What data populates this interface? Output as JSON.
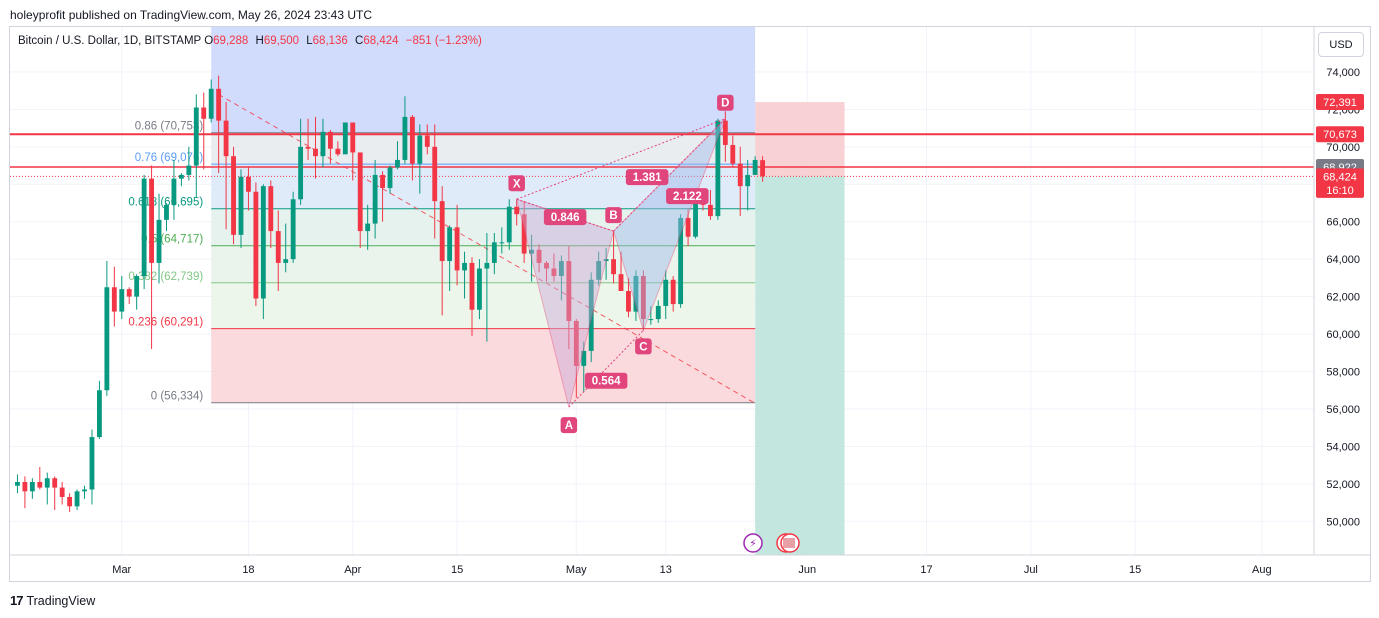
{
  "header": {
    "publisher_line": "holeyprofit published on TradingView.com, May 26, 2024 23:43 UTC"
  },
  "symbol": {
    "name": "Bitcoin / U.S. Dollar, 1D, BITSTAMP",
    "o_label": "O",
    "o_value": "69,288",
    "h_label": "H",
    "h_value": "69,500",
    "l_label": "L",
    "l_value": "68,136",
    "c_label": "C",
    "c_value": "68,424",
    "change": "−851 (−1.23%)"
  },
  "currency_button": "USD",
  "footer": {
    "brand": "TradingView",
    "logo_text": "17"
  },
  "colors": {
    "up": "#089981",
    "down": "#f23645",
    "pattern": "#e0457b",
    "stop_zone": "#f7c9cd",
    "target_zone": "#b9e3d9"
  },
  "chart_data": {
    "type": "candlestick",
    "y_ticks": [
      "74,000",
      "72,000",
      "70,000",
      "68,000",
      "66,000",
      "64,000",
      "62,000",
      "60,000",
      "58,000",
      "56,000",
      "54,000",
      "52,000",
      "50,000"
    ],
    "y_tick_values": [
      74000,
      72000,
      70000,
      68000,
      66000,
      64000,
      62000,
      60000,
      58000,
      56000,
      54000,
      52000,
      50000
    ],
    "ylim": [
      48200,
      76400
    ],
    "x_ticks": [
      "Mar",
      "18",
      "Apr",
      "15",
      "May",
      "13",
      "Jun",
      "17",
      "Jul",
      "15",
      "Aug"
    ],
    "x_tick_dates": [
      "2024-03-01",
      "2024-03-18",
      "2024-04-01",
      "2024-04-15",
      "2024-05-01",
      "2024-05-13",
      "2024-06-01",
      "2024-06-17",
      "2024-07-01",
      "2024-07-15",
      "2024-08-01"
    ],
    "date_range": [
      "2024-02-15",
      "2024-08-08"
    ],
    "price_labels": [
      {
        "text": "72,391",
        "value": 72391,
        "color": "#f23645"
      },
      {
        "text": "70,673",
        "value": 70673,
        "color": "#f23645"
      },
      {
        "text": "68,922",
        "value": 68922,
        "color": "#787b86"
      },
      {
        "text": "68,424",
        "value": 68424,
        "color": "#f23645"
      },
      {
        "text": "16:10",
        "value": 67700,
        "color": "#f23645"
      }
    ],
    "fib_levels": [
      {
        "ratio": "0.86",
        "text": "0.86 (70,753)",
        "value": 70753,
        "color": "#787b86"
      },
      {
        "ratio": "0.76",
        "text": "0.76 (69,076)",
        "value": 69076,
        "color": "#5b9cf6"
      },
      {
        "ratio": "0.618",
        "text": "0.618 (66,695)",
        "value": 66695,
        "color": "#089981"
      },
      {
        "ratio": "0.5",
        "text": "0.5 (64,717)",
        "value": 64717,
        "color": "#4caf50"
      },
      {
        "ratio": "0.382",
        "text": "0.382 (62,739)",
        "value": 62739,
        "color": "#81c784"
      },
      {
        "ratio": "0.236",
        "text": "0.236 (60,291)",
        "value": 60291,
        "color": "#f23645"
      },
      {
        "ratio": "0",
        "text": "0 (56,334)",
        "value": 56334,
        "color": "#787b86"
      }
    ],
    "harmonic_points": [
      {
        "label": "X",
        "date": "2024-04-23",
        "value": 67200
      },
      {
        "label": "A",
        "date": "2024-04-30",
        "value": 56100
      },
      {
        "label": "B",
        "date": "2024-05-06",
        "value": 65500
      },
      {
        "label": "C",
        "date": "2024-05-10",
        "value": 60200
      },
      {
        "label": "D",
        "date": "2024-05-21",
        "value": 71500
      }
    ],
    "harmonic_ratios": [
      "0.846",
      "0.564",
      "1.381",
      "2.122"
    ],
    "position": {
      "entry": 68424,
      "stop": 72391,
      "target": 48200
    },
    "candles": [
      {
        "d": "2024-02-16",
        "o": 51900,
        "h": 52500,
        "l": 51500,
        "c": 52100
      },
      {
        "d": "2024-02-17",
        "o": 52100,
        "h": 52400,
        "l": 50700,
        "c": 51600
      },
      {
        "d": "2024-02-18",
        "o": 51600,
        "h": 52300,
        "l": 51200,
        "c": 52100
      },
      {
        "d": "2024-02-19",
        "o": 52100,
        "h": 52900,
        "l": 51700,
        "c": 51800
      },
      {
        "d": "2024-02-20",
        "o": 51800,
        "h": 52600,
        "l": 50900,
        "c": 52300
      },
      {
        "d": "2024-02-21",
        "o": 52300,
        "h": 52400,
        "l": 50600,
        "c": 51800
      },
      {
        "d": "2024-02-22",
        "o": 51800,
        "h": 52100,
        "l": 50900,
        "c": 51300
      },
      {
        "d": "2024-02-23",
        "o": 51300,
        "h": 51500,
        "l": 50500,
        "c": 50800
      },
      {
        "d": "2024-02-24",
        "o": 50800,
        "h": 51700,
        "l": 50600,
        "c": 51600
      },
      {
        "d": "2024-02-25",
        "o": 51600,
        "h": 51900,
        "l": 51200,
        "c": 51700
      },
      {
        "d": "2024-02-26",
        "o": 51700,
        "h": 54900,
        "l": 50900,
        "c": 54500
      },
      {
        "d": "2024-02-27",
        "o": 54500,
        "h": 57500,
        "l": 54400,
        "c": 57000
      },
      {
        "d": "2024-02-28",
        "o": 57000,
        "h": 63900,
        "l": 56700,
        "c": 62500
      },
      {
        "d": "2024-02-29",
        "o": 62500,
        "h": 63600,
        "l": 60400,
        "c": 61200
      },
      {
        "d": "2024-03-01",
        "o": 61200,
        "h": 63100,
        "l": 60800,
        "c": 62400
      },
      {
        "d": "2024-03-02",
        "o": 62400,
        "h": 62500,
        "l": 61600,
        "c": 62000
      },
      {
        "d": "2024-03-03",
        "o": 62000,
        "h": 63200,
        "l": 61300,
        "c": 63100
      },
      {
        "d": "2024-03-04",
        "o": 63100,
        "h": 68500,
        "l": 62400,
        "c": 68300
      },
      {
        "d": "2024-03-05",
        "o": 68300,
        "h": 69000,
        "l": 59200,
        "c": 63800
      },
      {
        "d": "2024-03-06",
        "o": 63800,
        "h": 67500,
        "l": 62700,
        "c": 66100
      },
      {
        "d": "2024-03-07",
        "o": 66100,
        "h": 67000,
        "l": 65500,
        "c": 66900
      },
      {
        "d": "2024-03-08",
        "o": 66900,
        "h": 69300,
        "l": 66100,
        "c": 68300
      },
      {
        "d": "2024-03-09",
        "o": 68300,
        "h": 68600,
        "l": 67900,
        "c": 68500
      },
      {
        "d": "2024-03-10",
        "o": 68500,
        "h": 70000,
        "l": 68200,
        "c": 69000
      },
      {
        "d": "2024-03-11",
        "o": 69000,
        "h": 72800,
        "l": 67300,
        "c": 72100
      },
      {
        "d": "2024-03-12",
        "o": 72100,
        "h": 72900,
        "l": 68800,
        "c": 71500
      },
      {
        "d": "2024-03-13",
        "o": 71500,
        "h": 73600,
        "l": 71300,
        "c": 73100
      },
      {
        "d": "2024-03-14",
        "o": 73100,
        "h": 73800,
        "l": 68600,
        "c": 71400
      },
      {
        "d": "2024-03-15",
        "o": 71400,
        "h": 72400,
        "l": 65600,
        "c": 69500
      },
      {
        "d": "2024-03-16",
        "o": 69500,
        "h": 70000,
        "l": 64800,
        "c": 65300
      },
      {
        "d": "2024-03-17",
        "o": 65300,
        "h": 68800,
        "l": 64600,
        "c": 68400
      },
      {
        "d": "2024-03-18",
        "o": 68400,
        "h": 68900,
        "l": 66600,
        "c": 67600
      },
      {
        "d": "2024-03-19",
        "o": 67600,
        "h": 68100,
        "l": 61500,
        "c": 61900
      },
      {
        "d": "2024-03-20",
        "o": 61900,
        "h": 68000,
        "l": 60800,
        "c": 67900
      },
      {
        "d": "2024-03-21",
        "o": 67900,
        "h": 68200,
        "l": 64600,
        "c": 65500
      },
      {
        "d": "2024-03-22",
        "o": 65500,
        "h": 66600,
        "l": 62300,
        "c": 63800
      },
      {
        "d": "2024-03-23",
        "o": 63800,
        "h": 65900,
        "l": 63300,
        "c": 64000
      },
      {
        "d": "2024-03-24",
        "o": 64000,
        "h": 67600,
        "l": 63800,
        "c": 67200
      },
      {
        "d": "2024-03-25",
        "o": 67200,
        "h": 71500,
        "l": 66900,
        "c": 70000
      },
      {
        "d": "2024-03-26",
        "o": 70000,
        "h": 71500,
        "l": 69300,
        "c": 69900
      },
      {
        "d": "2024-03-27",
        "o": 69900,
        "h": 71600,
        "l": 68300,
        "c": 69500
      },
      {
        "d": "2024-03-28",
        "o": 69500,
        "h": 71500,
        "l": 68900,
        "c": 70800
      },
      {
        "d": "2024-03-29",
        "o": 70800,
        "h": 70900,
        "l": 69100,
        "c": 69900
      },
      {
        "d": "2024-03-30",
        "o": 69900,
        "h": 70300,
        "l": 69500,
        "c": 69600
      },
      {
        "d": "2024-03-31",
        "o": 69600,
        "h": 71300,
        "l": 69600,
        "c": 71300
      },
      {
        "d": "2024-04-01",
        "o": 71300,
        "h": 71300,
        "l": 68200,
        "c": 69700
      },
      {
        "d": "2024-04-02",
        "o": 69700,
        "h": 69700,
        "l": 64600,
        "c": 65500
      },
      {
        "d": "2024-04-03",
        "o": 65500,
        "h": 66900,
        "l": 64500,
        "c": 65900
      },
      {
        "d": "2024-04-04",
        "o": 65900,
        "h": 69300,
        "l": 65100,
        "c": 68500
      },
      {
        "d": "2024-04-05",
        "o": 68500,
        "h": 68700,
        "l": 66000,
        "c": 67800
      },
      {
        "d": "2024-04-06",
        "o": 67800,
        "h": 69000,
        "l": 67500,
        "c": 68900
      },
      {
        "d": "2024-04-07",
        "o": 68900,
        "h": 70300,
        "l": 68800,
        "c": 69300
      },
      {
        "d": "2024-04-08",
        "o": 69300,
        "h": 72700,
        "l": 69100,
        "c": 71600
      },
      {
        "d": "2024-04-09",
        "o": 71600,
        "h": 71700,
        "l": 68200,
        "c": 69100
      },
      {
        "d": "2024-04-10",
        "o": 69100,
        "h": 71200,
        "l": 67500,
        "c": 70600
      },
      {
        "d": "2024-04-11",
        "o": 70600,
        "h": 71200,
        "l": 69600,
        "c": 70000
      },
      {
        "d": "2024-04-12",
        "o": 70000,
        "h": 71200,
        "l": 65100,
        "c": 67100
      },
      {
        "d": "2024-04-13",
        "o": 67100,
        "h": 67900,
        "l": 61000,
        "c": 63900
      },
      {
        "d": "2024-04-14",
        "o": 63900,
        "h": 65800,
        "l": 62300,
        "c": 65700
      },
      {
        "d": "2024-04-15",
        "o": 65700,
        "h": 66900,
        "l": 62600,
        "c": 63400
      },
      {
        "d": "2024-04-16",
        "o": 63400,
        "h": 64400,
        "l": 61900,
        "c": 63800
      },
      {
        "d": "2024-04-17",
        "o": 63800,
        "h": 64100,
        "l": 59900,
        "c": 61300
      },
      {
        "d": "2024-04-18",
        "o": 61300,
        "h": 64000,
        "l": 60800,
        "c": 63500
      },
      {
        "d": "2024-04-19",
        "o": 63500,
        "h": 65400,
        "l": 59600,
        "c": 63800
      },
      {
        "d": "2024-04-20",
        "o": 63800,
        "h": 65400,
        "l": 63200,
        "c": 64900
      },
      {
        "d": "2024-04-21",
        "o": 64900,
        "h": 65700,
        "l": 64300,
        "c": 64900
      },
      {
        "d": "2024-04-22",
        "o": 64900,
        "h": 67200,
        "l": 64500,
        "c": 66800
      },
      {
        "d": "2024-04-23",
        "o": 66800,
        "h": 67200,
        "l": 65800,
        "c": 66400
      },
      {
        "d": "2024-04-24",
        "o": 66400,
        "h": 67100,
        "l": 63800,
        "c": 64300
      },
      {
        "d": "2024-04-25",
        "o": 64300,
        "h": 65300,
        "l": 62800,
        "c": 64500
      },
      {
        "d": "2024-04-26",
        "o": 64500,
        "h": 64800,
        "l": 63300,
        "c": 63800
      },
      {
        "d": "2024-04-27",
        "o": 63800,
        "h": 63900,
        "l": 62800,
        "c": 63500
      },
      {
        "d": "2024-04-28",
        "o": 63500,
        "h": 64300,
        "l": 62800,
        "c": 63100
      },
      {
        "d": "2024-04-29",
        "o": 63100,
        "h": 64200,
        "l": 61800,
        "c": 63900
      },
      {
        "d": "2024-04-30",
        "o": 63900,
        "h": 64700,
        "l": 59200,
        "c": 60700
      },
      {
        "d": "2024-05-01",
        "o": 60700,
        "h": 60800,
        "l": 56600,
        "c": 58300
      },
      {
        "d": "2024-05-02",
        "o": 58300,
        "h": 59600,
        "l": 56900,
        "c": 59100
      },
      {
        "d": "2024-05-03",
        "o": 59100,
        "h": 63300,
        "l": 58500,
        "c": 62900
      },
      {
        "d": "2024-05-04",
        "o": 62900,
        "h": 64400,
        "l": 62600,
        "c": 63900
      },
      {
        "d": "2024-05-05",
        "o": 63900,
        "h": 64600,
        "l": 62900,
        "c": 64000
      },
      {
        "d": "2024-05-06",
        "o": 64000,
        "h": 65500,
        "l": 62700,
        "c": 63200
      },
      {
        "d": "2024-05-07",
        "o": 63200,
        "h": 64400,
        "l": 62300,
        "c": 62300
      },
      {
        "d": "2024-05-08",
        "o": 62300,
        "h": 63000,
        "l": 60900,
        "c": 61200
      },
      {
        "d": "2024-05-09",
        "o": 61200,
        "h": 63400,
        "l": 60700,
        "c": 63100
      },
      {
        "d": "2024-05-10",
        "o": 63100,
        "h": 63400,
        "l": 60200,
        "c": 60800
      },
      {
        "d": "2024-05-11",
        "o": 60800,
        "h": 61500,
        "l": 60500,
        "c": 60800
      },
      {
        "d": "2024-05-12",
        "o": 60800,
        "h": 61800,
        "l": 60600,
        "c": 61500
      },
      {
        "d": "2024-05-13",
        "o": 61500,
        "h": 63400,
        "l": 60800,
        "c": 62900
      },
      {
        "d": "2024-05-14",
        "o": 62900,
        "h": 63100,
        "l": 61200,
        "c": 61600
      },
      {
        "d": "2024-05-15",
        "o": 61600,
        "h": 66400,
        "l": 61400,
        "c": 66200
      },
      {
        "d": "2024-05-16",
        "o": 66200,
        "h": 66700,
        "l": 64700,
        "c": 65200
      },
      {
        "d": "2024-05-17",
        "o": 65200,
        "h": 67400,
        "l": 65100,
        "c": 67000
      },
      {
        "d": "2024-05-18",
        "o": 67000,
        "h": 67400,
        "l": 66600,
        "c": 66900
      },
      {
        "d": "2024-05-19",
        "o": 66900,
        "h": 67700,
        "l": 66100,
        "c": 66300
      },
      {
        "d": "2024-05-20",
        "o": 66300,
        "h": 71500,
        "l": 66100,
        "c": 71400
      },
      {
        "d": "2024-05-21",
        "o": 71400,
        "h": 71900,
        "l": 69200,
        "c": 70100
      },
      {
        "d": "2024-05-22",
        "o": 70100,
        "h": 70600,
        "l": 68900,
        "c": 69100
      },
      {
        "d": "2024-05-23",
        "o": 69100,
        "h": 70000,
        "l": 66300,
        "c": 67900
      },
      {
        "d": "2024-05-24",
        "o": 67900,
        "h": 69300,
        "l": 66600,
        "c": 68500
      },
      {
        "d": "2024-05-25",
        "o": 68500,
        "h": 69500,
        "l": 68500,
        "c": 69300
      },
      {
        "d": "2024-05-26",
        "o": 69288,
        "h": 69500,
        "l": 68136,
        "c": 68424
      }
    ]
  }
}
